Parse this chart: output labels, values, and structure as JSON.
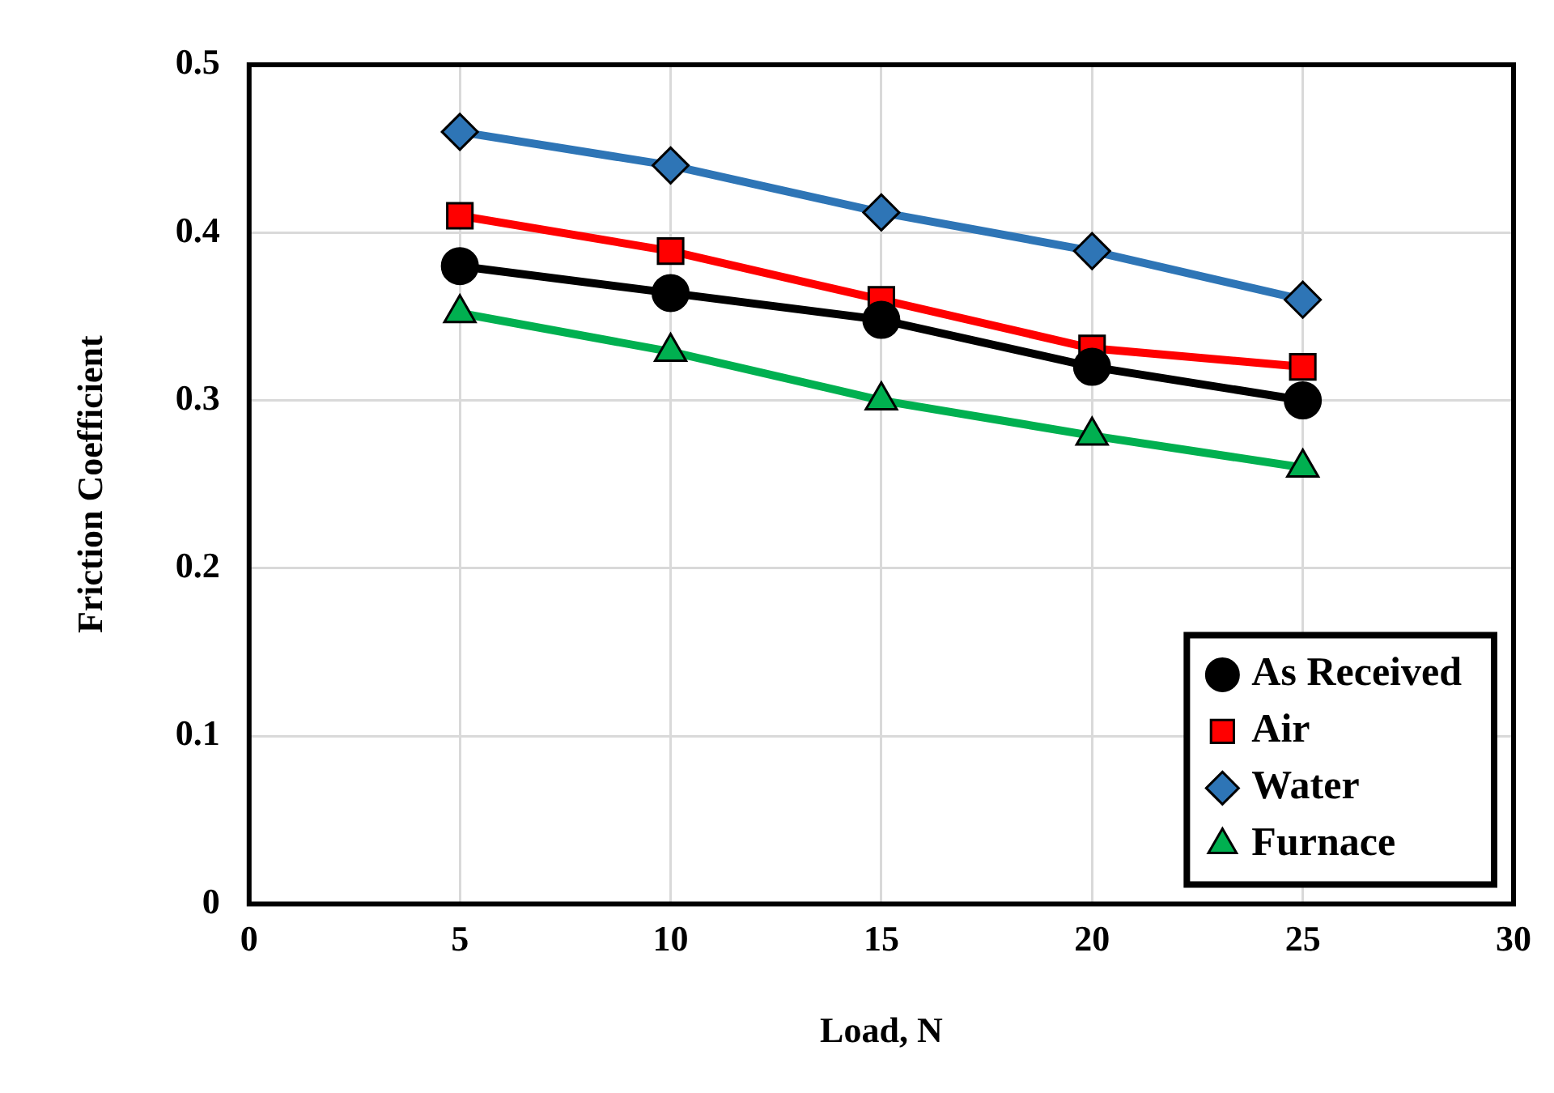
{
  "chart_data": {
    "type": "line",
    "xlabel": "Load, N",
    "ylabel": "Friction Coefficient",
    "x": [
      5,
      10,
      15,
      20,
      25
    ],
    "xlim": [
      0,
      30
    ],
    "xticks": [
      0,
      5,
      10,
      15,
      20,
      25,
      30
    ],
    "ylim": [
      0,
      0.5
    ],
    "yticks": [
      0,
      0.1,
      0.2,
      0.3,
      0.4,
      0.5
    ],
    "grid": true,
    "legend": "bottom right",
    "line_style": "solid",
    "series": [
      {
        "name": "As Received",
        "color": "#000000",
        "marker": "circle",
        "values": [
          0.38,
          0.364,
          0.348,
          0.32,
          0.3
        ]
      },
      {
        "name": "Air",
        "color": "#ff0000",
        "marker": "square",
        "values": [
          0.41,
          0.389,
          0.36,
          0.331,
          0.32
        ]
      },
      {
        "name": "Water",
        "color": "#2e75b6",
        "marker": "diamond",
        "values": [
          0.46,
          0.44,
          0.412,
          0.389,
          0.36
        ]
      },
      {
        "name": "Furnace",
        "color": "#00b050",
        "marker": "triangle",
        "values": [
          0.352,
          0.329,
          0.3,
          0.279,
          0.26
        ]
      }
    ]
  }
}
